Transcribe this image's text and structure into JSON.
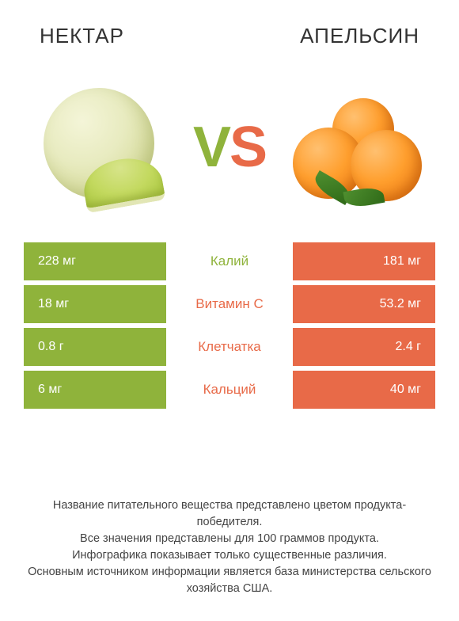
{
  "colors": {
    "left": "#8fb33b",
    "right": "#e86a48",
    "row_bg_alt": "#ffffff",
    "text_dark": "#333333"
  },
  "titles": {
    "left": "НЕКТАР",
    "right": "АПЕЛЬСИН"
  },
  "vs": {
    "v": "V",
    "s": "S"
  },
  "rows": [
    {
      "name": "Калий",
      "left": "228 мг",
      "right": "181 мг",
      "winner": "left"
    },
    {
      "name": "Витамин C",
      "left": "18 мг",
      "right": "53.2 мг",
      "winner": "right"
    },
    {
      "name": "Клетчатка",
      "left": "0.8 г",
      "right": "2.4 г",
      "winner": "right"
    },
    {
      "name": "Кальций",
      "left": "6 мг",
      "right": "40 мг",
      "winner": "right"
    }
  ],
  "footer": {
    "l1": "Название питательного вещества представлено цветом продукта-победителя.",
    "l2": "Все значения представлены для 100 граммов продукта.",
    "l3": "Инфографика показывает только существенные различия.",
    "l4": "Основным источником информации является база министерства сельского хозяйства США."
  }
}
